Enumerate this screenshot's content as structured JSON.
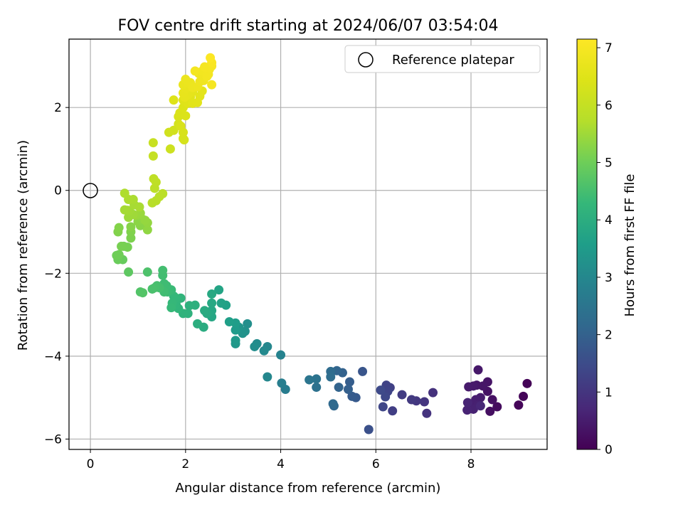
{
  "chart_data": {
    "type": "scatter",
    "title": "FOV centre drift starting at 2024/06/07 03:54:04",
    "xlabel": "Angular distance from reference (arcmin)",
    "ylabel": "Rotation from reference (arcmin)",
    "xlim": [
      -0.45,
      9.6
    ],
    "ylim": [
      -6.25,
      3.65
    ],
    "x_ticks": [
      0,
      2,
      4,
      6,
      8
    ],
    "y_ticks": [
      -6,
      -4,
      -2,
      0,
      2
    ],
    "grid": true,
    "legend": {
      "placement": "top-right",
      "entries": [
        "Reference platepar"
      ]
    },
    "reference_point": {
      "x": 0,
      "y": 0,
      "label": "Reference platepar"
    },
    "colorbar": {
      "label": "Hours from first FF file",
      "range": [
        0,
        7.15
      ],
      "ticks": [
        0,
        1,
        2,
        3,
        4,
        5,
        6,
        7
      ],
      "colormap": "viridis"
    },
    "points": [
      [
        9.18,
        -4.66,
        0.05
      ],
      [
        9.1,
        -4.97,
        0.08
      ],
      [
        9.0,
        -5.18,
        0.1
      ],
      [
        8.55,
        -5.22,
        0.2
      ],
      [
        8.4,
        -5.33,
        0.25
      ],
      [
        8.45,
        -5.05,
        0.3
      ],
      [
        8.35,
        -4.85,
        0.32
      ],
      [
        8.35,
        -4.62,
        0.35
      ],
      [
        8.25,
        -4.72,
        0.38
      ],
      [
        8.12,
        -4.7,
        0.4
      ],
      [
        8.15,
        -4.33,
        0.42
      ],
      [
        8.05,
        -4.72,
        0.45
      ],
      [
        7.95,
        -4.74,
        0.48
      ],
      [
        8.2,
        -5.0,
        0.5
      ],
      [
        8.1,
        -5.05,
        0.52
      ],
      [
        8.05,
        -5.15,
        0.55
      ],
      [
        8.15,
        -5.18,
        0.58
      ],
      [
        8.05,
        -5.28,
        0.6
      ],
      [
        7.92,
        -5.3,
        0.63
      ],
      [
        7.93,
        -5.12,
        0.66
      ],
      [
        8.2,
        -5.2,
        0.7
      ],
      [
        7.2,
        -4.88,
        0.9
      ],
      [
        7.07,
        -5.38,
        0.95
      ],
      [
        7.02,
        -5.1,
        1.0
      ],
      [
        6.85,
        -5.08,
        1.05
      ],
      [
        6.75,
        -5.05,
        1.1
      ],
      [
        6.55,
        -4.93,
        1.15
      ],
      [
        6.35,
        -5.32,
        1.2
      ],
      [
        6.3,
        -4.76,
        1.25
      ],
      [
        6.22,
        -4.7,
        1.3
      ],
      [
        6.25,
        -4.85,
        1.33
      ],
      [
        6.15,
        -5.22,
        1.36
      ],
      [
        6.2,
        -4.98,
        1.4
      ],
      [
        6.1,
        -4.82,
        1.45
      ],
      [
        5.85,
        -5.77,
        1.6
      ],
      [
        5.72,
        -4.37,
        1.7
      ],
      [
        5.58,
        -5.0,
        1.8
      ],
      [
        5.5,
        -4.97,
        1.85
      ],
      [
        5.45,
        -4.62,
        1.9
      ],
      [
        5.42,
        -4.8,
        1.95
      ],
      [
        5.3,
        -4.4,
        2.0
      ],
      [
        5.22,
        -4.75,
        2.05
      ],
      [
        5.18,
        -4.35,
        2.1
      ],
      [
        5.12,
        -5.2,
        2.15
      ],
      [
        5.1,
        -5.15,
        2.2
      ],
      [
        5.05,
        -4.37,
        2.25
      ],
      [
        5.05,
        -4.5,
        2.3
      ],
      [
        4.75,
        -4.75,
        2.4
      ],
      [
        4.75,
        -4.55,
        2.45
      ],
      [
        4.6,
        -4.57,
        2.5
      ],
      [
        4.1,
        -4.8,
        2.7
      ],
      [
        4.02,
        -4.65,
        2.75
      ],
      [
        4.0,
        -3.97,
        2.85
      ],
      [
        3.72,
        -3.77,
        3.0
      ],
      [
        3.65,
        -3.87,
        3.05
      ],
      [
        3.72,
        -4.5,
        3.0
      ],
      [
        3.5,
        -3.7,
        3.1
      ],
      [
        3.45,
        -3.77,
        3.15
      ],
      [
        3.3,
        -3.22,
        3.2
      ],
      [
        3.25,
        -3.4,
        3.25
      ],
      [
        3.2,
        -3.45,
        3.3
      ],
      [
        3.12,
        -3.3,
        3.35
      ],
      [
        3.05,
        -3.7,
        3.4
      ],
      [
        3.05,
        -3.62,
        3.45
      ],
      [
        3.05,
        -3.37,
        3.5
      ],
      [
        3.05,
        -3.2,
        3.55
      ],
      [
        2.92,
        -3.17,
        3.6
      ],
      [
        2.85,
        -2.77,
        3.65
      ],
      [
        2.75,
        -2.72,
        3.7
      ],
      [
        2.7,
        -2.4,
        3.75
      ],
      [
        2.55,
        -3.05,
        3.8
      ],
      [
        2.55,
        -2.9,
        3.82
      ],
      [
        2.55,
        -2.72,
        3.85
      ],
      [
        2.55,
        -2.5,
        3.87
      ],
      [
        2.45,
        -2.97,
        3.9
      ],
      [
        2.4,
        -2.9,
        3.92
      ],
      [
        2.38,
        -3.3,
        3.95
      ],
      [
        2.25,
        -3.22,
        4.0
      ],
      [
        2.2,
        -2.77,
        4.05
      ],
      [
        2.08,
        -2.78,
        4.1
      ],
      [
        2.05,
        -2.97,
        4.12
      ],
      [
        1.95,
        -2.97,
        4.15
      ],
      [
        1.9,
        -2.6,
        4.18
      ],
      [
        1.85,
        -2.85,
        4.2
      ],
      [
        1.8,
        -2.75,
        4.22
      ],
      [
        1.8,
        -2.6,
        4.25
      ],
      [
        1.75,
        -2.55,
        4.28
      ],
      [
        1.72,
        -2.72,
        4.3
      ],
      [
        1.7,
        -2.83,
        4.32
      ],
      [
        1.7,
        -2.4,
        4.35
      ],
      [
        1.62,
        -2.45,
        4.38
      ],
      [
        1.6,
        -2.3,
        4.4
      ],
      [
        1.55,
        -2.25,
        4.42
      ],
      [
        1.55,
        -2.45,
        4.44
      ],
      [
        1.52,
        -2.05,
        4.46
      ],
      [
        1.52,
        -1.93,
        4.48
      ],
      [
        1.45,
        -2.35,
        4.5
      ],
      [
        1.4,
        -2.3,
        4.52
      ],
      [
        1.35,
        -2.35,
        4.54
      ],
      [
        1.3,
        -2.38,
        4.56
      ],
      [
        1.2,
        -1.97,
        4.6
      ],
      [
        1.05,
        -2.45,
        4.65
      ],
      [
        1.1,
        -2.47,
        4.68
      ],
      [
        0.8,
        -1.97,
        4.8
      ],
      [
        0.68,
        -1.67,
        4.9
      ],
      [
        0.58,
        -1.67,
        4.95
      ],
      [
        0.55,
        -1.57,
        5.0
      ],
      [
        0.6,
        -1.55,
        5.02
      ],
      [
        0.7,
        -1.35,
        5.05
      ],
      [
        0.78,
        -1.37,
        5.08
      ],
      [
        0.65,
        -1.35,
        5.1
      ],
      [
        0.85,
        -1.15,
        5.15
      ],
      [
        0.85,
        -1.0,
        5.18
      ],
      [
        0.58,
        -1.0,
        5.2
      ],
      [
        0.6,
        -0.9,
        5.22
      ],
      [
        0.85,
        -0.88,
        5.25
      ],
      [
        1.05,
        -0.85,
        5.28
      ],
      [
        1.0,
        -0.75,
        5.3
      ],
      [
        1.1,
        -0.7,
        5.32
      ],
      [
        1.2,
        -0.95,
        5.35
      ],
      [
        1.2,
        -0.78,
        5.38
      ],
      [
        1.15,
        -0.72,
        5.4
      ],
      [
        1.0,
        -0.6,
        5.42
      ],
      [
        1.05,
        -0.55,
        5.44
      ],
      [
        0.95,
        -0.6,
        5.46
      ],
      [
        0.8,
        -0.65,
        5.48
      ],
      [
        0.9,
        -0.58,
        5.5
      ],
      [
        0.82,
        -0.5,
        5.52
      ],
      [
        0.78,
        -0.48,
        5.54
      ],
      [
        0.72,
        -0.47,
        5.56
      ],
      [
        0.92,
        -0.35,
        5.58
      ],
      [
        1.03,
        -0.4,
        5.6
      ],
      [
        0.9,
        -0.22,
        5.62
      ],
      [
        0.8,
        -0.22,
        5.64
      ],
      [
        0.72,
        -0.07,
        5.66
      ],
      [
        1.3,
        -0.3,
        5.75
      ],
      [
        1.38,
        -0.25,
        5.78
      ],
      [
        1.45,
        -0.15,
        5.8
      ],
      [
        1.52,
        -0.08,
        5.82
      ],
      [
        1.35,
        0.05,
        5.85
      ],
      [
        1.38,
        0.2,
        5.88
      ],
      [
        1.33,
        0.28,
        5.9
      ],
      [
        1.32,
        0.83,
        6.0
      ],
      [
        1.32,
        1.15,
        6.05
      ],
      [
        1.68,
        1.0,
        6.15
      ],
      [
        1.65,
        1.4,
        6.2
      ],
      [
        1.75,
        1.45,
        6.22
      ],
      [
        1.85,
        1.6,
        6.25
      ],
      [
        1.95,
        1.25,
        6.28
      ],
      [
        1.97,
        1.22,
        6.3
      ],
      [
        1.95,
        1.4,
        6.32
      ],
      [
        1.9,
        1.55,
        6.34
      ],
      [
        1.85,
        1.78,
        6.36
      ],
      [
        1.88,
        1.87,
        6.38
      ],
      [
        2.0,
        1.8,
        6.4
      ],
      [
        1.95,
        2.0,
        6.42
      ],
      [
        1.75,
        2.18,
        6.45
      ],
      [
        1.95,
        2.18,
        6.47
      ],
      [
        2.05,
        2.1,
        6.5
      ],
      [
        2.1,
        2.25,
        6.52
      ],
      [
        2.15,
        2.1,
        6.54
      ],
      [
        2.25,
        2.12,
        6.56
      ],
      [
        2.3,
        2.27,
        6.58
      ],
      [
        2.35,
        2.4,
        6.6
      ],
      [
        2.15,
        2.38,
        6.62
      ],
      [
        2.05,
        2.3,
        6.64
      ],
      [
        1.98,
        2.25,
        6.66
      ],
      [
        1.95,
        2.35,
        6.68
      ],
      [
        2.0,
        2.45,
        6.7
      ],
      [
        1.95,
        2.55,
        6.72
      ],
      [
        2.05,
        2.58,
        6.74
      ],
      [
        2.0,
        2.68,
        6.76
      ],
      [
        2.1,
        2.6,
        6.78
      ],
      [
        2.15,
        2.48,
        6.8
      ],
      [
        2.25,
        2.5,
        6.82
      ],
      [
        2.3,
        2.62,
        6.84
      ],
      [
        2.38,
        2.65,
        6.86
      ],
      [
        2.28,
        2.82,
        6.88
      ],
      [
        2.35,
        2.88,
        6.9
      ],
      [
        2.42,
        2.95,
        6.92
      ],
      [
        2.5,
        2.92,
        6.94
      ],
      [
        2.48,
        2.8,
        6.96
      ],
      [
        2.55,
        2.55,
        6.98
      ],
      [
        2.55,
        3.0,
        7.0
      ],
      [
        2.55,
        3.08,
        7.05
      ],
      [
        2.52,
        3.2,
        7.12
      ],
      [
        2.2,
        2.88,
        6.95
      ],
      [
        2.4,
        2.98,
        6.97
      ],
      [
        2.45,
        2.75,
        6.93
      ]
    ]
  }
}
